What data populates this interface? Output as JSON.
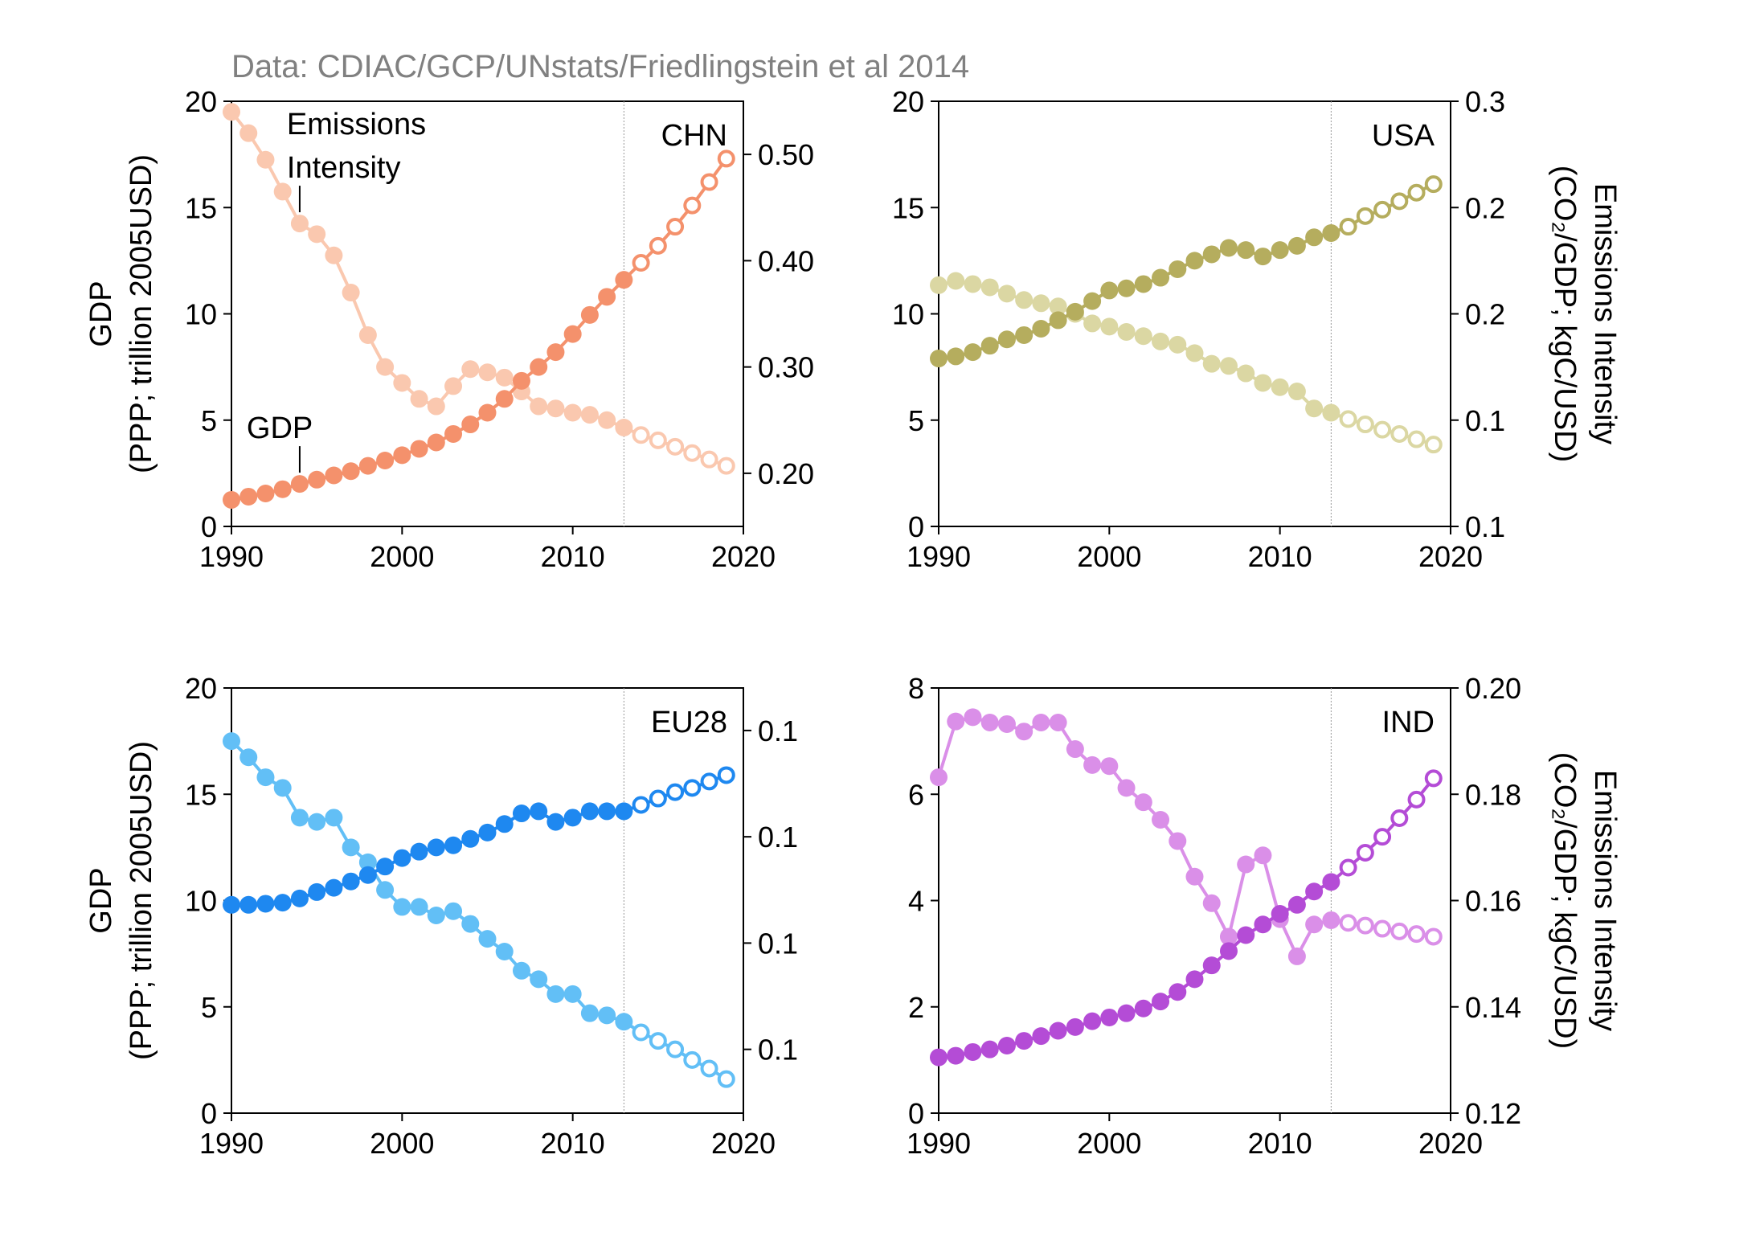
{
  "source_note": "Data: CDIAC/GCP/UNstats/Friedlingstein et al 2014",
  "chart_data": [
    {
      "type": "line",
      "country": "CHN",
      "x": [
        1990,
        1991,
        1992,
        1993,
        1994,
        1995,
        1996,
        1997,
        1998,
        1999,
        2000,
        2001,
        2002,
        2003,
        2004,
        2005,
        2006,
        2007,
        2008,
        2009,
        2010,
        2011,
        2012,
        2013,
        2014,
        2015,
        2016,
        2017,
        2018,
        2019
      ],
      "projection_start": 2014,
      "xlim": [
        1990,
        2020
      ],
      "x_ticks": [
        "1990",
        "2000",
        "2010",
        "2020"
      ],
      "left_axis": {
        "label_line1": "GDP",
        "label_line2": "(PPP; trillion 2005USD)",
        "ylim": [
          0,
          20
        ],
        "ticks": [
          "0",
          "5",
          "10",
          "15",
          "20"
        ]
      },
      "right_axis": {
        "label_line1": "",
        "label_line2": "",
        "ylim": [
          0.15,
          0.55
        ],
        "tick_values": [
          0.2,
          0.3,
          0.4,
          0.5
        ],
        "ticks": [
          "0.20",
          "0.30",
          "0.40",
          "0.50"
        ]
      },
      "annotations": [
        {
          "lines": [
            "Emissions",
            "Intensity"
          ],
          "series": "emissions_intensity",
          "year": 1994
        },
        {
          "lines": [
            "GDP"
          ],
          "series": "gdp",
          "year": 1994
        }
      ],
      "series": [
        {
          "key": "gdp",
          "axis": "left",
          "color": "#F4916C",
          "values": [
            1.25,
            1.4,
            1.55,
            1.75,
            2.0,
            2.2,
            2.4,
            2.6,
            2.85,
            3.1,
            3.35,
            3.65,
            3.95,
            4.35,
            4.8,
            5.35,
            6.0,
            6.85,
            7.5,
            8.2,
            9.05,
            9.95,
            10.8,
            11.6,
            12.4,
            13.2,
            14.1,
            15.1,
            16.2,
            17.3
          ]
        },
        {
          "key": "emissions_intensity",
          "axis": "right",
          "color": "#FAC8AF",
          "values": [
            0.54,
            0.52,
            0.495,
            0.465,
            0.435,
            0.425,
            0.405,
            0.37,
            0.33,
            0.3,
            0.285,
            0.27,
            0.263,
            0.282,
            0.298,
            0.295,
            0.29,
            0.277,
            0.263,
            0.261,
            0.257,
            0.255,
            0.25,
            0.243,
            0.236,
            0.231,
            0.225,
            0.219,
            0.213,
            0.207
          ]
        }
      ]
    },
    {
      "type": "line",
      "country": "USA",
      "x": [
        1990,
        1991,
        1992,
        1993,
        1994,
        1995,
        1996,
        1997,
        1998,
        1999,
        2000,
        2001,
        2002,
        2003,
        2004,
        2005,
        2006,
        2007,
        2008,
        2009,
        2010,
        2011,
        2012,
        2013,
        2014,
        2015,
        2016,
        2017,
        2018,
        2019
      ],
      "projection_start": 2014,
      "xlim": [
        1990,
        2020
      ],
      "x_ticks": [
        "1990",
        "2000",
        "2010",
        "2020"
      ],
      "left_axis": {
        "label_line1": "",
        "label_line2": "",
        "ylim": [
          0,
          20
        ],
        "ticks": [
          "0",
          "5",
          "10",
          "15",
          "20"
        ]
      },
      "right_axis": {
        "label_line1": "Emissions Intensity",
        "label_line2": "(CO₂/GDP; kgC/USD)",
        "ylim": [
          0.1,
          0.3
        ],
        "tick_values": [
          0.1,
          0.15,
          0.2,
          0.25,
          0.3
        ],
        "ticks": [
          "0.1",
          "0.1",
          "0.2",
          "0.2",
          "0.3"
        ]
      },
      "annotations": [],
      "series": [
        {
          "key": "gdp",
          "axis": "left",
          "color": "#B5AD5E",
          "values": [
            7.9,
            8.0,
            8.2,
            8.5,
            8.8,
            9.0,
            9.3,
            9.7,
            10.1,
            10.6,
            11.1,
            11.2,
            11.4,
            11.7,
            12.1,
            12.5,
            12.8,
            13.1,
            13.0,
            12.7,
            13.0,
            13.2,
            13.6,
            13.8,
            14.1,
            14.6,
            14.9,
            15.3,
            15.7,
            16.1
          ]
        },
        {
          "key": "emissions_intensity",
          "axis": "right",
          "color": "#DBD7A3",
          "values": [
            0.2135,
            0.2155,
            0.214,
            0.2125,
            0.2095,
            0.2065,
            0.205,
            0.2035,
            0.2,
            0.1955,
            0.194,
            0.1915,
            0.1895,
            0.187,
            0.1855,
            0.1815,
            0.1765,
            0.1755,
            0.172,
            0.1675,
            0.1655,
            0.1635,
            0.1555,
            0.1535,
            0.1505,
            0.148,
            0.1455,
            0.1435,
            0.141,
            0.1385
          ]
        }
      ]
    },
    {
      "type": "line",
      "country": "EU28",
      "x": [
        1990,
        1991,
        1992,
        1993,
        1994,
        1995,
        1996,
        1997,
        1998,
        1999,
        2000,
        2001,
        2002,
        2003,
        2004,
        2005,
        2006,
        2007,
        2008,
        2009,
        2010,
        2011,
        2012,
        2013,
        2014,
        2015,
        2016,
        2017,
        2018,
        2019
      ],
      "projection_start": 2014,
      "xlim": [
        1990,
        2020
      ],
      "x_ticks": [
        "1990",
        "2000",
        "2010",
        "2020"
      ],
      "left_axis": {
        "label_line1": "GDP",
        "label_line2": "(PPP; trillion 2005USD)",
        "ylim": [
          0,
          20
        ],
        "ticks": [
          "0",
          "5",
          "10",
          "15",
          "20"
        ]
      },
      "right_axis": {
        "label_line1": "",
        "label_line2": "",
        "ylim": [
          0.04,
          0.14
        ],
        "tick_values": [
          0.055,
          0.08,
          0.105,
          0.13
        ],
        "ticks": [
          "0.1",
          "0.1",
          "0.1",
          "0.1"
        ]
      },
      "annotations": [],
      "series": [
        {
          "key": "gdp",
          "axis": "left",
          "color": "#1E88F0",
          "values": [
            9.8,
            9.8,
            9.85,
            9.9,
            10.1,
            10.4,
            10.6,
            10.9,
            11.2,
            11.6,
            12.0,
            12.3,
            12.5,
            12.6,
            12.9,
            13.2,
            13.6,
            14.1,
            14.2,
            13.7,
            13.9,
            14.2,
            14.2,
            14.2,
            14.5,
            14.8,
            15.1,
            15.3,
            15.6,
            15.9
          ]
        },
        {
          "key": "emissions_intensity",
          "axis": "right",
          "color": "#62BFF6",
          "values": [
            0.1275,
            0.1237,
            0.119,
            0.1165,
            0.1095,
            0.1085,
            0.1095,
            0.1025,
            0.099,
            0.0925,
            0.0885,
            0.0885,
            0.0865,
            0.0875,
            0.0845,
            0.081,
            0.078,
            0.0735,
            0.0715,
            0.068,
            0.068,
            0.0635,
            0.063,
            0.0615,
            0.059,
            0.057,
            0.055,
            0.0525,
            0.0505,
            0.048
          ]
        }
      ]
    },
    {
      "type": "line",
      "country": "IND",
      "x": [
        1990,
        1991,
        1992,
        1993,
        1994,
        1995,
        1996,
        1997,
        1998,
        1999,
        2000,
        2001,
        2002,
        2003,
        2004,
        2005,
        2006,
        2007,
        2008,
        2009,
        2010,
        2011,
        2012,
        2013,
        2014,
        2015,
        2016,
        2017,
        2018,
        2019
      ],
      "projection_start": 2014,
      "xlim": [
        1990,
        2020
      ],
      "x_ticks": [
        "1990",
        "2000",
        "2010",
        "2020"
      ],
      "left_axis": {
        "label_line1": "",
        "label_line2": "",
        "ylim": [
          0,
          8
        ],
        "ticks": [
          "0",
          "2",
          "4",
          "6",
          "8"
        ]
      },
      "right_axis": {
        "label_line1": "Emissions Intensity",
        "label_line2": "(CO₂/GDP; kgC/USD)",
        "ylim": [
          0.12,
          0.2
        ],
        "tick_values": [
          0.12,
          0.14,
          0.16,
          0.18,
          0.2
        ],
        "ticks": [
          "0.12",
          "0.14",
          "0.16",
          "0.18",
          "0.20"
        ]
      },
      "annotations": [],
      "series": [
        {
          "key": "gdp",
          "axis": "left",
          "color": "#B44CD6",
          "values": [
            1.05,
            1.08,
            1.15,
            1.2,
            1.27,
            1.36,
            1.45,
            1.55,
            1.62,
            1.73,
            1.8,
            1.88,
            1.97,
            2.1,
            2.28,
            2.52,
            2.78,
            3.05,
            3.35,
            3.55,
            3.75,
            3.92,
            4.17,
            4.35,
            4.62,
            4.9,
            5.2,
            5.55,
            5.9,
            6.3
          ]
        },
        {
          "key": "emissions_intensity",
          "axis": "right",
          "color": "#DA8FE8",
          "values": [
            0.1832,
            0.1937,
            0.1945,
            0.1935,
            0.1932,
            0.1918,
            0.1935,
            0.1935,
            0.1885,
            0.1855,
            0.1853,
            0.1812,
            0.1785,
            0.1752,
            0.1712,
            0.1645,
            0.1595,
            0.1532,
            0.1668,
            0.1685,
            0.1565,
            0.1495,
            0.1555,
            0.1563,
            0.1558,
            0.1553,
            0.1547,
            0.1542,
            0.1537,
            0.1532
          ]
        }
      ]
    }
  ]
}
